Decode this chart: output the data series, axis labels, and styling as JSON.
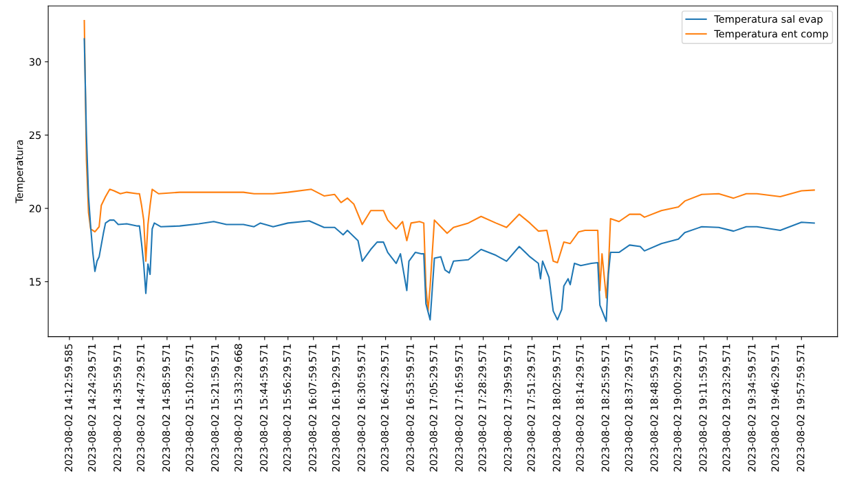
{
  "chart_data": {
    "type": "line",
    "ylabel": "Temperatura",
    "xlim": [
      "2023-08-02T14:03",
      "2023-08-02T20:15"
    ],
    "ylim": [
      11.25,
      33.8
    ],
    "yticks": [
      15,
      20,
      25,
      30
    ],
    "xticks": [
      {
        "value": "2023-08-02T14:13",
        "label": "2023-08-02 14:12:59.585"
      },
      {
        "value": "2023-08-02T14:24",
        "label": "2023-08-02 14:24:29.571"
      },
      {
        "value": "2023-08-02T14:36",
        "label": "2023-08-02 14:35:59.571"
      },
      {
        "value": "2023-08-02T14:47",
        "label": "2023-08-02 14:47:29.571"
      },
      {
        "value": "2023-08-02T14:59",
        "label": "2023-08-02 14:58:59.571"
      },
      {
        "value": "2023-08-02T15:10",
        "label": "2023-08-02 15:10:29.571"
      },
      {
        "value": "2023-08-02T15:22",
        "label": "2023-08-02 15:21:59.571"
      },
      {
        "value": "2023-08-02T15:33",
        "label": "2023-08-02 15:33:29.668"
      },
      {
        "value": "2023-08-02T15:45",
        "label": "2023-08-02 15:44:59.571"
      },
      {
        "value": "2023-08-02T15:56",
        "label": "2023-08-02 15:56:29.571"
      },
      {
        "value": "2023-08-02T16:08",
        "label": "2023-08-02 16:07:59.571"
      },
      {
        "value": "2023-08-02T16:19",
        "label": "2023-08-02 16:19:29.571"
      },
      {
        "value": "2023-08-02T16:31",
        "label": "2023-08-02 16:30:59.571"
      },
      {
        "value": "2023-08-02T16:42",
        "label": "2023-08-02 16:42:29.571"
      },
      {
        "value": "2023-08-02T16:54",
        "label": "2023-08-02 16:53:59.571"
      },
      {
        "value": "2023-08-02T17:05",
        "label": "2023-08-02 17:05:29.571"
      },
      {
        "value": "2023-08-02T17:17",
        "label": "2023-08-02 17:16:59.571"
      },
      {
        "value": "2023-08-02T17:28",
        "label": "2023-08-02 17:28:29.571"
      },
      {
        "value": "2023-08-02T17:40",
        "label": "2023-08-02 17:39:59.571"
      },
      {
        "value": "2023-08-02T17:51",
        "label": "2023-08-02 17:51:29.571"
      },
      {
        "value": "2023-08-02T18:03",
        "label": "2023-08-02 18:02:59.571"
      },
      {
        "value": "2023-08-02T18:14",
        "label": "2023-08-02 18:14:29.571"
      },
      {
        "value": "2023-08-02T18:26",
        "label": "2023-08-02 18:25:59.571"
      },
      {
        "value": "2023-08-02T18:37",
        "label": "2023-08-02 18:37:29.571"
      },
      {
        "value": "2023-08-02T18:49",
        "label": "2023-08-02 18:48:59.571"
      },
      {
        "value": "2023-08-02T19:00",
        "label": "2023-08-02 19:00:29.571"
      },
      {
        "value": "2023-08-02T19:12",
        "label": "2023-08-02 19:11:59.571"
      },
      {
        "value": "2023-08-02T19:23",
        "label": "2023-08-02 19:23:29.571"
      },
      {
        "value": "2023-08-02T19:35",
        "label": "2023-08-02 19:34:59.571"
      },
      {
        "value": "2023-08-02T19:46",
        "label": "2023-08-02 19:46:29.571"
      },
      {
        "value": "2023-08-02T19:58",
        "label": "2023-08-02 19:57:59.571"
      }
    ],
    "legend": "top right",
    "grid": false,
    "marker": "none",
    "line_style": "solid",
    "series": [
      {
        "name": "Temperatura sal evap",
        "color": "#1f77b4",
        "x": [
          "2023-08-02T14:20",
          "2023-08-02T14:21",
          "2023-08-02T14:22",
          "2023-08-02T14:23",
          "2023-08-02T14:24",
          "2023-08-02T14:25",
          "2023-08-02T14:26",
          "2023-08-02T14:27",
          "2023-08-02T14:29",
          "2023-08-02T14:30",
          "2023-08-02T14:32",
          "2023-08-02T14:34",
          "2023-08-02T14:36",
          "2023-08-02T14:40",
          "2023-08-02T14:45",
          "2023-08-02T14:46",
          "2023-08-02T14:47",
          "2023-08-02T14:48",
          "2023-08-02T14:49",
          "2023-08-02T14:50",
          "2023-08-02T14:51",
          "2023-08-02T14:52",
          "2023-08-02T14:53",
          "2023-08-02T14:56",
          "2023-08-02T15:05",
          "2023-08-02T15:14",
          "2023-08-02T15:21",
          "2023-08-02T15:27",
          "2023-08-02T15:35",
          "2023-08-02T15:40",
          "2023-08-02T15:43",
          "2023-08-02T15:49",
          "2023-08-02T15:56",
          "2023-08-02T16:06",
          "2023-08-02T16:13",
          "2023-08-02T16:18",
          "2023-08-02T16:22",
          "2023-08-02T16:24",
          "2023-08-02T16:29",
          "2023-08-02T16:31",
          "2023-08-02T16:35",
          "2023-08-02T16:38",
          "2023-08-02T16:41",
          "2023-08-02T16:43",
          "2023-08-02T16:47",
          "2023-08-02T16:49",
          "2023-08-02T16:52",
          "2023-08-02T16:53",
          "2023-08-02T16:56",
          "2023-08-02T16:59",
          "2023-08-02T17:00",
          "2023-08-02T17:01",
          "2023-08-02T17:03",
          "2023-08-02T17:05",
          "2023-08-02T17:08",
          "2023-08-02T17:10",
          "2023-08-02T17:12",
          "2023-08-02T17:14",
          "2023-08-02T17:21",
          "2023-08-02T17:27",
          "2023-08-02T17:34",
          "2023-08-02T17:39",
          "2023-08-02T17:45",
          "2023-08-02T17:50",
          "2023-08-02T17:54",
          "2023-08-02T17:55",
          "2023-08-02T17:56",
          "2023-08-02T17:59",
          "2023-08-02T18:01",
          "2023-08-02T18:03",
          "2023-08-02T18:05",
          "2023-08-02T18:06",
          "2023-08-02T18:08",
          "2023-08-02T18:09",
          "2023-08-02T18:11",
          "2023-08-02T18:14",
          "2023-08-02T18:19",
          "2023-08-02T18:22",
          "2023-08-02T18:23",
          "2023-08-02T18:26",
          "2023-08-02T18:27",
          "2023-08-02T18:28",
          "2023-08-02T18:32",
          "2023-08-02T18:37",
          "2023-08-02T18:42",
          "2023-08-02T18:44",
          "2023-08-02T18:52",
          "2023-08-02T19:00",
          "2023-08-02T19:03",
          "2023-08-02T19:11",
          "2023-08-02T19:19",
          "2023-08-02T19:26",
          "2023-08-02T19:32",
          "2023-08-02T19:37",
          "2023-08-02T19:48",
          "2023-08-02T19:58",
          "2023-08-02T20:04"
        ],
        "values": [
          31.56,
          25.0,
          20.8,
          18.75,
          17.0,
          15.7,
          16.4,
          16.7,
          18.3,
          19.0,
          19.2,
          19.2,
          18.9,
          18.95,
          18.8,
          18.8,
          17.6,
          16.2,
          14.2,
          16.2,
          15.5,
          18.6,
          19.0,
          18.75,
          18.8,
          18.95,
          19.1,
          18.9,
          18.9,
          18.75,
          19.0,
          18.75,
          19.0,
          19.15,
          18.7,
          18.7,
          18.2,
          18.5,
          17.8,
          16.4,
          17.2,
          17.7,
          17.7,
          17.0,
          16.25,
          16.9,
          14.4,
          16.4,
          17.0,
          16.9,
          16.9,
          13.5,
          12.4,
          16.6,
          16.7,
          15.8,
          15.6,
          16.4,
          16.5,
          17.2,
          16.8,
          16.4,
          17.4,
          16.7,
          16.25,
          15.2,
          16.4,
          15.3,
          13.0,
          12.4,
          13.1,
          14.7,
          15.2,
          14.8,
          16.25,
          16.1,
          16.25,
          16.3,
          13.4,
          12.3,
          15.5,
          17.0,
          17.0,
          17.5,
          17.4,
          17.1,
          17.6,
          17.9,
          18.35,
          18.75,
          18.7,
          18.45,
          18.75,
          18.75,
          18.5,
          19.05,
          19.0
        ]
      },
      {
        "name": "Temperatura ent comp",
        "color": "#ff7f0e",
        "x": [
          "2023-08-02T14:20",
          "2023-08-02T14:21",
          "2023-08-02T14:22",
          "2023-08-02T14:23",
          "2023-08-02T14:25",
          "2023-08-02T14:27",
          "2023-08-02T14:28",
          "2023-08-02T14:30",
          "2023-08-02T14:32",
          "2023-08-02T14:34",
          "2023-08-02T14:37",
          "2023-08-02T14:40",
          "2023-08-02T14:45",
          "2023-08-02T14:46",
          "2023-08-02T14:47",
          "2023-08-02T14:48",
          "2023-08-02T14:49",
          "2023-08-02T14:50",
          "2023-08-02T14:51",
          "2023-08-02T14:52",
          "2023-08-02T14:55",
          "2023-08-02T15:05",
          "2023-08-02T15:17",
          "2023-08-02T15:27",
          "2023-08-02T15:35",
          "2023-08-02T15:40",
          "2023-08-02T15:49",
          "2023-08-02T15:56",
          "2023-08-02T16:07",
          "2023-08-02T16:13",
          "2023-08-02T16:18",
          "2023-08-02T16:21",
          "2023-08-02T16:24",
          "2023-08-02T16:27",
          "2023-08-02T16:31",
          "2023-08-02T16:35",
          "2023-08-02T16:38",
          "2023-08-02T16:41",
          "2023-08-02T16:43",
          "2023-08-02T16:47",
          "2023-08-02T16:50",
          "2023-08-02T16:52",
          "2023-08-02T16:54",
          "2023-08-02T16:58",
          "2023-08-02T17:00",
          "2023-08-02T17:01",
          "2023-08-02T17:02",
          "2023-08-02T17:03",
          "2023-08-02T17:05",
          "2023-08-02T17:08",
          "2023-08-02T17:11",
          "2023-08-02T17:14",
          "2023-08-02T17:21",
          "2023-08-02T17:27",
          "2023-08-02T17:34",
          "2023-08-02T17:39",
          "2023-08-02T17:45",
          "2023-08-02T17:50",
          "2023-08-02T17:54",
          "2023-08-02T17:58",
          "2023-08-02T18:01",
          "2023-08-02T18:03",
          "2023-08-02T18:06",
          "2023-08-02T18:09",
          "2023-08-02T18:13",
          "2023-08-02T18:16",
          "2023-08-02T18:22",
          "2023-08-02T18:23",
          "2023-08-02T18:24",
          "2023-08-02T18:26",
          "2023-08-02T18:27",
          "2023-08-02T18:28",
          "2023-08-02T18:32",
          "2023-08-02T18:37",
          "2023-08-02T18:42",
          "2023-08-02T18:44",
          "2023-08-02T18:52",
          "2023-08-02T19:00",
          "2023-08-02T19:03",
          "2023-08-02T19:11",
          "2023-08-02T19:19",
          "2023-08-02T19:26",
          "2023-08-02T19:32",
          "2023-08-02T19:37",
          "2023-08-02T19:48",
          "2023-08-02T19:58",
          "2023-08-02T20:04"
        ],
        "values": [
          32.8,
          23.3,
          19.7,
          18.6,
          18.4,
          18.75,
          20.2,
          20.8,
          21.3,
          21.2,
          21.0,
          21.1,
          21.0,
          21.0,
          20.2,
          19.2,
          16.4,
          18.9,
          20.2,
          21.3,
          21.0,
          21.1,
          21.1,
          21.1,
          21.1,
          21.0,
          21.0,
          21.1,
          21.3,
          20.85,
          20.95,
          20.4,
          20.7,
          20.3,
          18.9,
          19.85,
          19.85,
          19.85,
          19.2,
          18.6,
          19.1,
          17.8,
          19.0,
          19.1,
          19.0,
          14.7,
          13.0,
          14.7,
          19.2,
          18.75,
          18.3,
          18.7,
          19.0,
          19.45,
          19.0,
          18.7,
          19.6,
          19.0,
          18.45,
          18.5,
          16.4,
          16.3,
          17.7,
          17.6,
          18.4,
          18.5,
          18.5,
          14.4,
          16.9,
          13.9,
          15.8,
          19.3,
          19.1,
          19.6,
          19.6,
          19.4,
          19.85,
          20.1,
          20.5,
          20.95,
          21.0,
          20.7,
          21.0,
          21.0,
          20.8,
          21.2,
          21.25
        ]
      }
    ]
  }
}
